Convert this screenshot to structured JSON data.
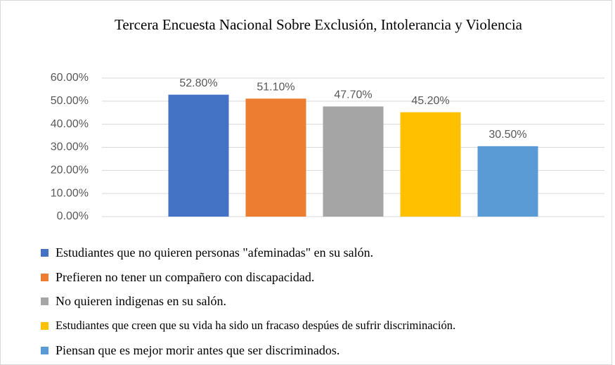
{
  "chart_data": {
    "type": "bar",
    "title": "Tercera Encuesta Nacional Sobre Exclusión, Intolerancia y Violencia",
    "categories": [
      null
    ],
    "series": [
      {
        "name": "Estudiantes que no quieren personas \"afeminadas\" en su salón.",
        "color": "#4472c4",
        "values": [
          52.8
        ],
        "value_labels": [
          "52.80%"
        ]
      },
      {
        "name": "Prefieren no tener un compañero con discapacidad.",
        "color": "#ed7d31",
        "values": [
          51.1
        ],
        "value_labels": [
          "51.10%"
        ]
      },
      {
        "name": "No quieren indigenas en su salón.",
        "color": "#a5a5a5",
        "values": [
          47.7
        ],
        "value_labels": [
          "47.70%"
        ]
      },
      {
        "name": "Estudiantes que creen que su vida ha sido un fracaso despúes de sufrir discriminación.",
        "color": "#ffc000",
        "values": [
          45.2
        ],
        "value_labels": [
          "45.20%"
        ]
      },
      {
        "name": "Piensan que es mejor morir antes que ser discriminados.",
        "color": "#5b9bd5",
        "values": [
          30.5
        ],
        "value_labels": [
          "30.50%"
        ]
      }
    ],
    "ylim": [
      0,
      60
    ],
    "yticks": [
      {
        "value": 0,
        "label": "0.00%"
      },
      {
        "value": 10,
        "label": "10.00%"
      },
      {
        "value": 20,
        "label": "20.00%"
      },
      {
        "value": 30,
        "label": "30.00%"
      },
      {
        "value": 40,
        "label": "40.00%"
      },
      {
        "value": 50,
        "label": "50.00%"
      },
      {
        "value": 60,
        "label": "60.00%"
      }
    ],
    "grid": true,
    "legend": "bottom"
  }
}
